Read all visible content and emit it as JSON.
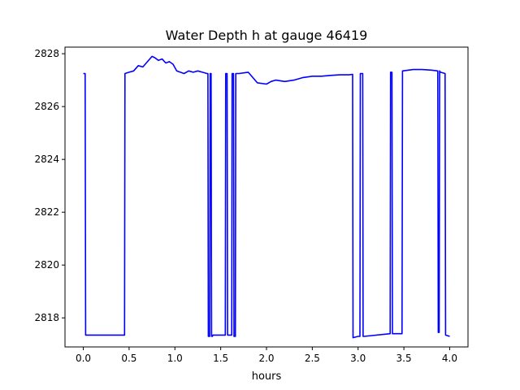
{
  "chart_data": {
    "type": "line",
    "title": "Water Depth h at gauge 46419",
    "xlabel": "hours",
    "ylabel": "",
    "xlim": [
      -0.2,
      4.2
    ],
    "ylim": [
      2816.9,
      2828.25
    ],
    "xticks": [
      0.0,
      0.5,
      1.0,
      1.5,
      2.0,
      2.5,
      3.0,
      3.5,
      4.0
    ],
    "xtick_labels": [
      "0.0",
      "0.5",
      "1.0",
      "1.5",
      "2.0",
      "2.5",
      "3.0",
      "3.5",
      "4.0"
    ],
    "yticks": [
      2818,
      2820,
      2822,
      2824,
      2826,
      2828
    ],
    "ytick_labels": [
      "2818",
      "2820",
      "2822",
      "2824",
      "2826",
      "2828"
    ],
    "grid": false,
    "series": [
      {
        "color": "#0000ff",
        "x": [
          0.0,
          0.02,
          0.025,
          0.45,
          0.455,
          0.5,
          0.55,
          0.6,
          0.65,
          0.7,
          0.75,
          0.78,
          0.82,
          0.86,
          0.9,
          0.94,
          0.98,
          1.02,
          1.06,
          1.1,
          1.15,
          1.2,
          1.25,
          1.3,
          1.35,
          1.36,
          1.365,
          1.38,
          1.385,
          1.395,
          1.4,
          1.41,
          1.415,
          1.55,
          1.555,
          1.57,
          1.575,
          1.62,
          1.625,
          1.64,
          1.645,
          1.66,
          1.665,
          1.7,
          1.8,
          1.85,
          1.9,
          2.0,
          2.05,
          2.1,
          2.2,
          2.3,
          2.4,
          2.5,
          2.6,
          2.7,
          2.8,
          2.9,
          2.94,
          2.945,
          3.0,
          3.02,
          3.025,
          3.05,
          3.055,
          3.06,
          3.065,
          3.35,
          3.355,
          3.37,
          3.375,
          3.48,
          3.485,
          3.6,
          3.7,
          3.8,
          3.87,
          3.875,
          3.885,
          3.89,
          3.895,
          3.9,
          3.95,
          3.955,
          4.0
        ],
        "y": [
          2827.25,
          2827.25,
          2817.35,
          2817.35,
          2827.25,
          2827.3,
          2827.35,
          2827.55,
          2827.5,
          2827.7,
          2827.9,
          2827.85,
          2827.75,
          2827.8,
          2827.65,
          2827.7,
          2827.6,
          2827.35,
          2827.3,
          2827.25,
          2827.35,
          2827.3,
          2827.35,
          2827.3,
          2827.25,
          2827.25,
          2817.3,
          2817.3,
          2827.25,
          2827.25,
          2817.3,
          2817.3,
          2817.35,
          2817.35,
          2827.25,
          2827.25,
          2817.35,
          2817.35,
          2827.25,
          2827.25,
          2817.3,
          2817.3,
          2827.25,
          2827.25,
          2827.3,
          2827.1,
          2826.9,
          2826.85,
          2826.95,
          2827.0,
          2826.95,
          2827.0,
          2827.1,
          2827.15,
          2827.15,
          2827.18,
          2827.2,
          2827.2,
          2827.22,
          2817.25,
          2817.3,
          2817.3,
          2827.25,
          2827.25,
          2817.3,
          2817.3,
          2817.3,
          2817.4,
          2827.3,
          2827.3,
          2817.4,
          2817.4,
          2827.35,
          2827.4,
          2827.4,
          2827.38,
          2827.35,
          2817.45,
          2817.45,
          2827.35,
          2827.3,
          2827.3,
          2827.25,
          2817.35,
          2817.3
        ]
      }
    ]
  }
}
